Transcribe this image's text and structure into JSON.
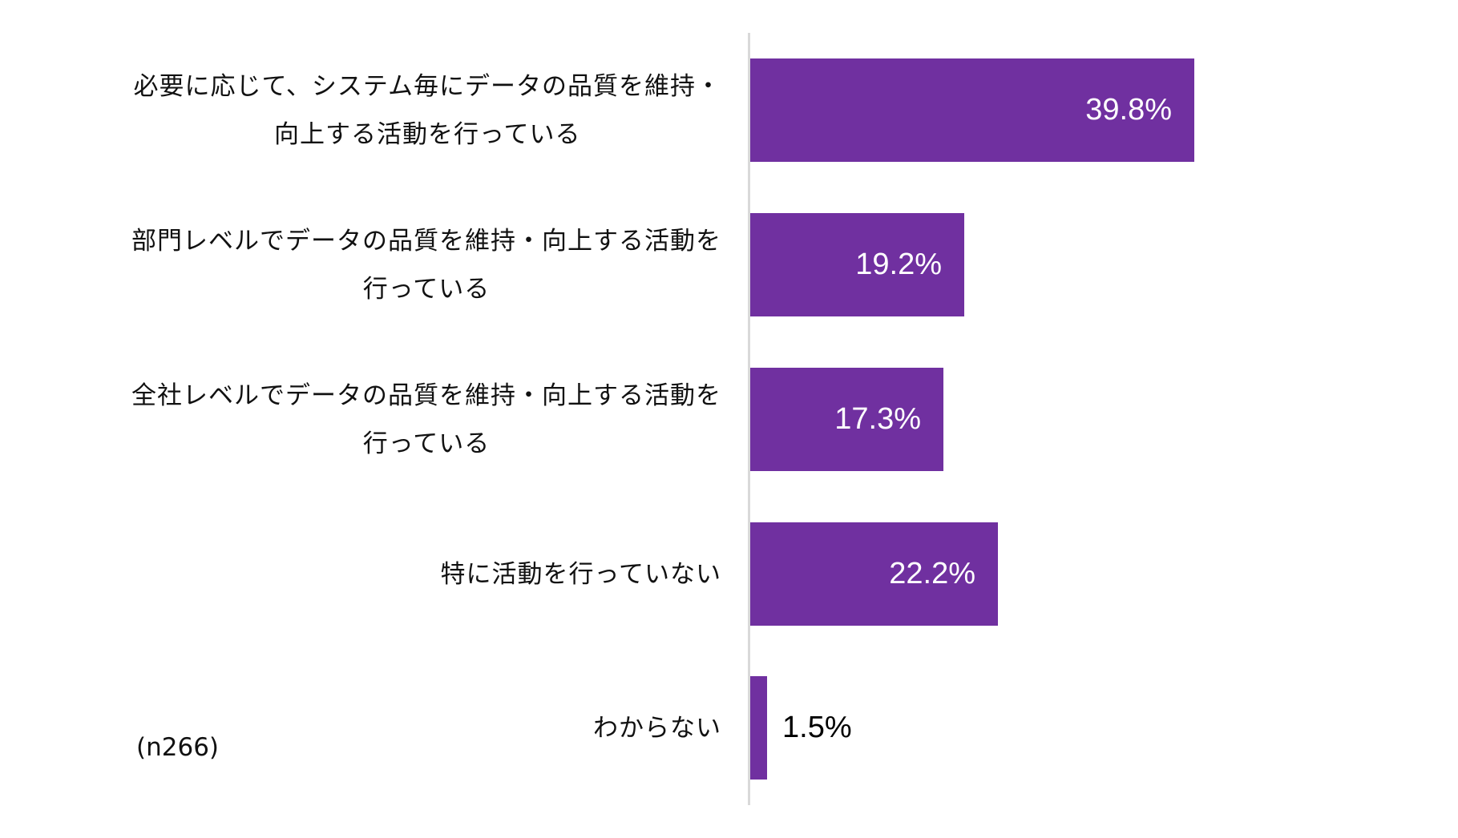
{
  "chart_data": {
    "type": "bar",
    "orientation": "horizontal",
    "title": "",
    "xlabel": "",
    "ylabel": "",
    "categories": [
      "必要に応じて、システム毎にデータの品質を維持・向上する活動を行っている",
      "部門レベルでデータの品質を維持・向上する活動を行っている",
      "全社レベルでデータの品質を維持・向上する活動を行っている",
      "特に活動を行っていない",
      "わからない"
    ],
    "values": [
      39.8,
      19.2,
      17.3,
      22.2,
      1.5
    ],
    "value_labels": [
      "39.8%",
      "19.2%",
      "17.3%",
      "22.2%",
      "1.5%"
    ],
    "unit": "%",
    "xlim": [
      0,
      65
    ],
    "grid": false,
    "legend": null,
    "bar_color": "#7030A0",
    "annotation": "(n266)"
  },
  "rows": [
    {
      "label_lines": [
        "必要に応じて、システム毎にデータの品質を維持・",
        "向上する活動を行っている"
      ],
      "value": 39.8,
      "value_label": "39.8%",
      "label_inside": true
    },
    {
      "label_lines": [
        "部門レベルでデータの品質を維持・向上する活動を",
        "行っている"
      ],
      "value": 19.2,
      "value_label": "19.2%",
      "label_inside": true
    },
    {
      "label_lines": [
        "全社レベルでデータの品質を維持・向上する活動を",
        "行っている"
      ],
      "value": 17.3,
      "value_label": "17.3%",
      "label_inside": true
    },
    {
      "label_lines": [
        "特に活動を行っていない"
      ],
      "value": 22.2,
      "value_label": "22.2%",
      "label_inside": true
    },
    {
      "label_lines": [
        "わからない"
      ],
      "value": 1.5,
      "value_label": "1.5%",
      "label_inside": false
    }
  ],
  "sample_note": "(n266)",
  "colors": {
    "bar": "#7030A0",
    "axis": "#D9D9D9",
    "label_inside": "#FFFFFF",
    "label_outside": "#000000",
    "category_text": "#111111"
  }
}
